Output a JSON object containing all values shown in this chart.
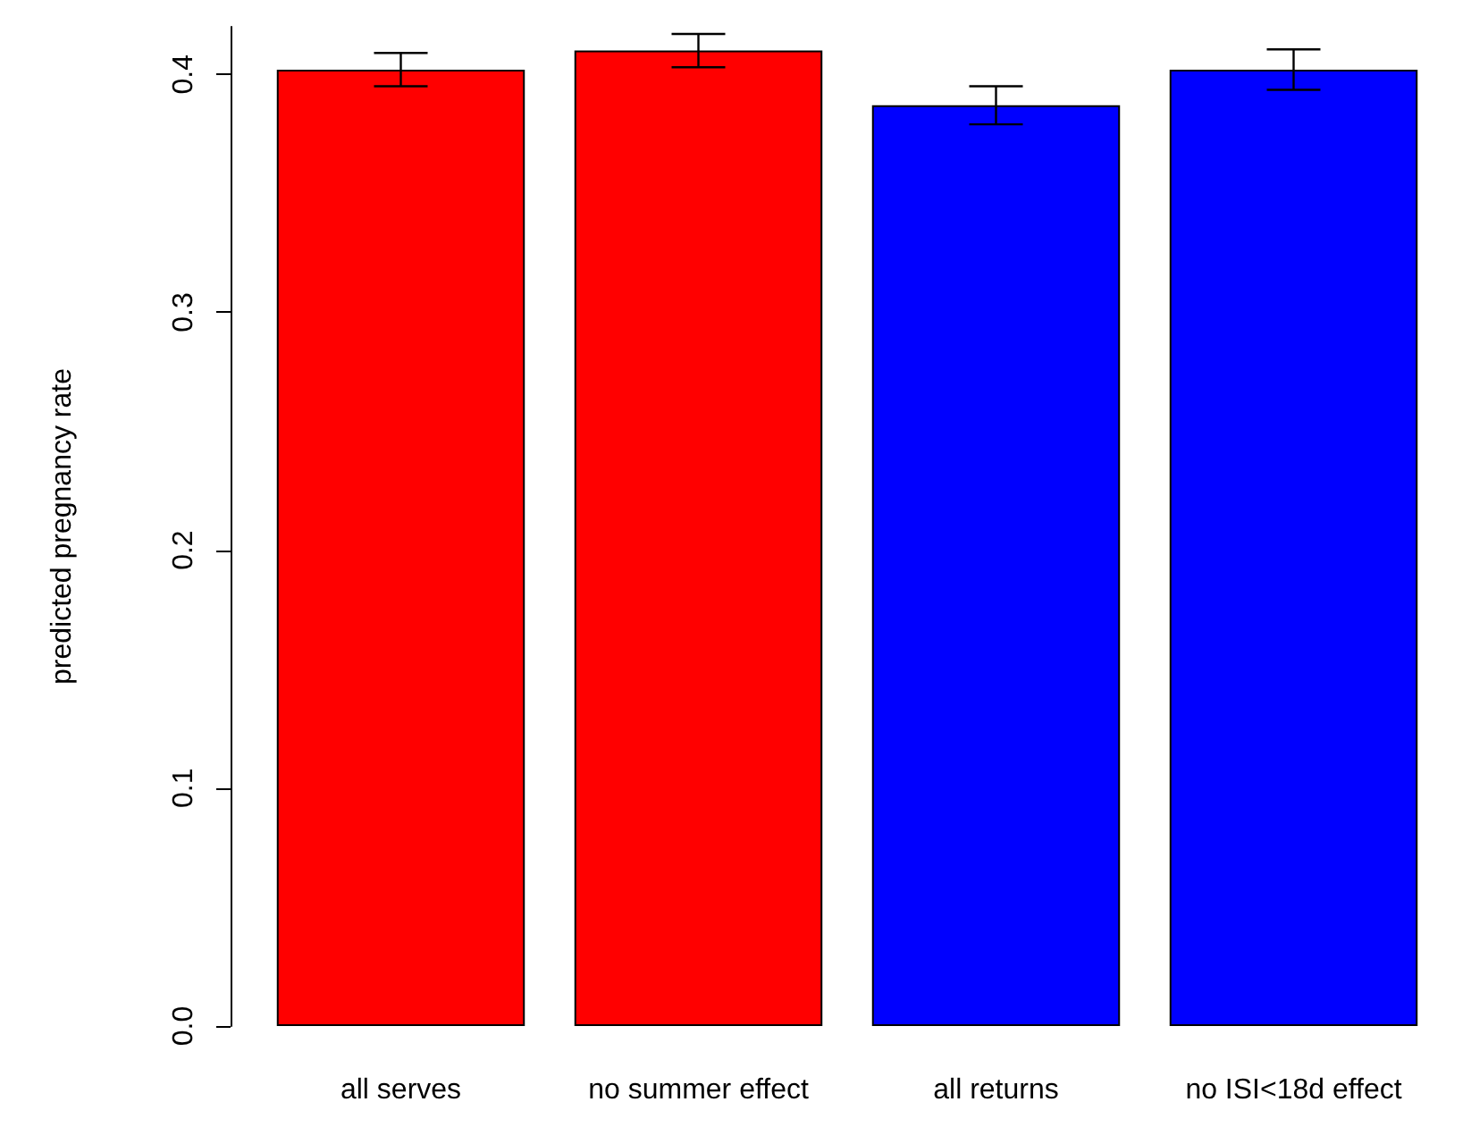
{
  "chart_data": {
    "type": "bar",
    "ylabel": "predicted pregnancy rate",
    "categories": [
      "all serves",
      "no summer effect",
      "all returns",
      "no ISI<18d effect"
    ],
    "values": [
      0.402,
      0.41,
      0.387,
      0.402
    ],
    "errors": [
      0.007,
      0.007,
      0.008,
      0.0085
    ],
    "colors": [
      "#ff0000",
      "#ff0000",
      "#0000ff",
      "#0000ff"
    ],
    "ylim": [
      0,
      0.42
    ],
    "yticks": [
      {
        "value": 0,
        "label": "0.0"
      },
      0.1,
      0.2,
      0.3,
      0.4
    ],
    "grid": false
  }
}
